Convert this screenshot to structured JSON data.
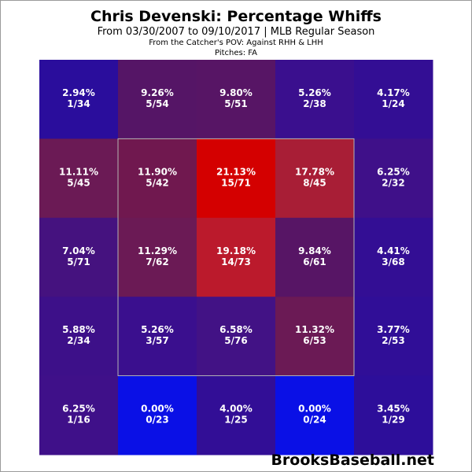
{
  "chart_data": {
    "type": "heatmap",
    "title": "Chris Devenski: Percentage Whiffs",
    "subtitle": "From 03/30/2007 to 09/10/2017 | MLB Regular Season",
    "subtitle2": "From the Catcher's POV:  Against RHH & LHH",
    "subtitle3": "Pitches:  FA",
    "rows": 5,
    "cols": 5,
    "cells": [
      [
        {
          "pct": "2.94%",
          "frac": "1/34",
          "color": "#2a0d9c"
        },
        {
          "pct": "9.26%",
          "frac": "5/54",
          "color": "#551566"
        },
        {
          "pct": "9.80%",
          "frac": "5/51",
          "color": "#571565"
        },
        {
          "pct": "5.26%",
          "frac": "2/38",
          "color": "#3a0f8e"
        },
        {
          "pct": "4.17%",
          "frac": "1/24",
          "color": "#330e94"
        }
      ],
      [
        {
          "pct": "11.11%",
          "frac": "5/45",
          "color": "#6b1a55"
        },
        {
          "pct": "11.90%",
          "frac": "5/42",
          "color": "#70184f"
        },
        {
          "pct": "21.13%",
          "frac": "15/71",
          "color": "#d40000"
        },
        {
          "pct": "17.78%",
          "frac": "8/45",
          "color": "#a81e36"
        },
        {
          "pct": "6.25%",
          "frac": "2/32",
          "color": "#3f1089"
        }
      ],
      [
        {
          "pct": "7.04%",
          "frac": "5/71",
          "color": "#45127f"
        },
        {
          "pct": "11.29%",
          "frac": "7/62",
          "color": "#6b1a55"
        },
        {
          "pct": "19.18%",
          "frac": "14/73",
          "color": "#bb1a2c"
        },
        {
          "pct": "9.84%",
          "frac": "6/61",
          "color": "#571565"
        },
        {
          "pct": "4.41%",
          "frac": "3/68",
          "color": "#330e94"
        }
      ],
      [
        {
          "pct": "5.88%",
          "frac": "2/34",
          "color": "#3d1089"
        },
        {
          "pct": "5.26%",
          "frac": "3/57",
          "color": "#3a0f8e"
        },
        {
          "pct": "6.58%",
          "frac": "5/76",
          "color": "#421285"
        },
        {
          "pct": "11.32%",
          "frac": "6/53",
          "color": "#6b1a55"
        },
        {
          "pct": "3.77%",
          "frac": "2/53",
          "color": "#300e97"
        }
      ],
      [
        {
          "pct": "6.25%",
          "frac": "1/16",
          "color": "#3f1089"
        },
        {
          "pct": "0.00%",
          "frac": "0/23",
          "color": "#0a10e6"
        },
        {
          "pct": "4.00%",
          "frac": "1/25",
          "color": "#320e96"
        },
        {
          "pct": "0.00%",
          "frac": "0/24",
          "color": "#0a10e6"
        },
        {
          "pct": "3.45%",
          "frac": "1/29",
          "color": "#2d0e9a"
        }
      ]
    ],
    "strike_zone": {
      "rows": [
        1,
        3
      ],
      "cols": [
        1,
        3
      ]
    }
  },
  "brand": "BrooksBaseball.net"
}
